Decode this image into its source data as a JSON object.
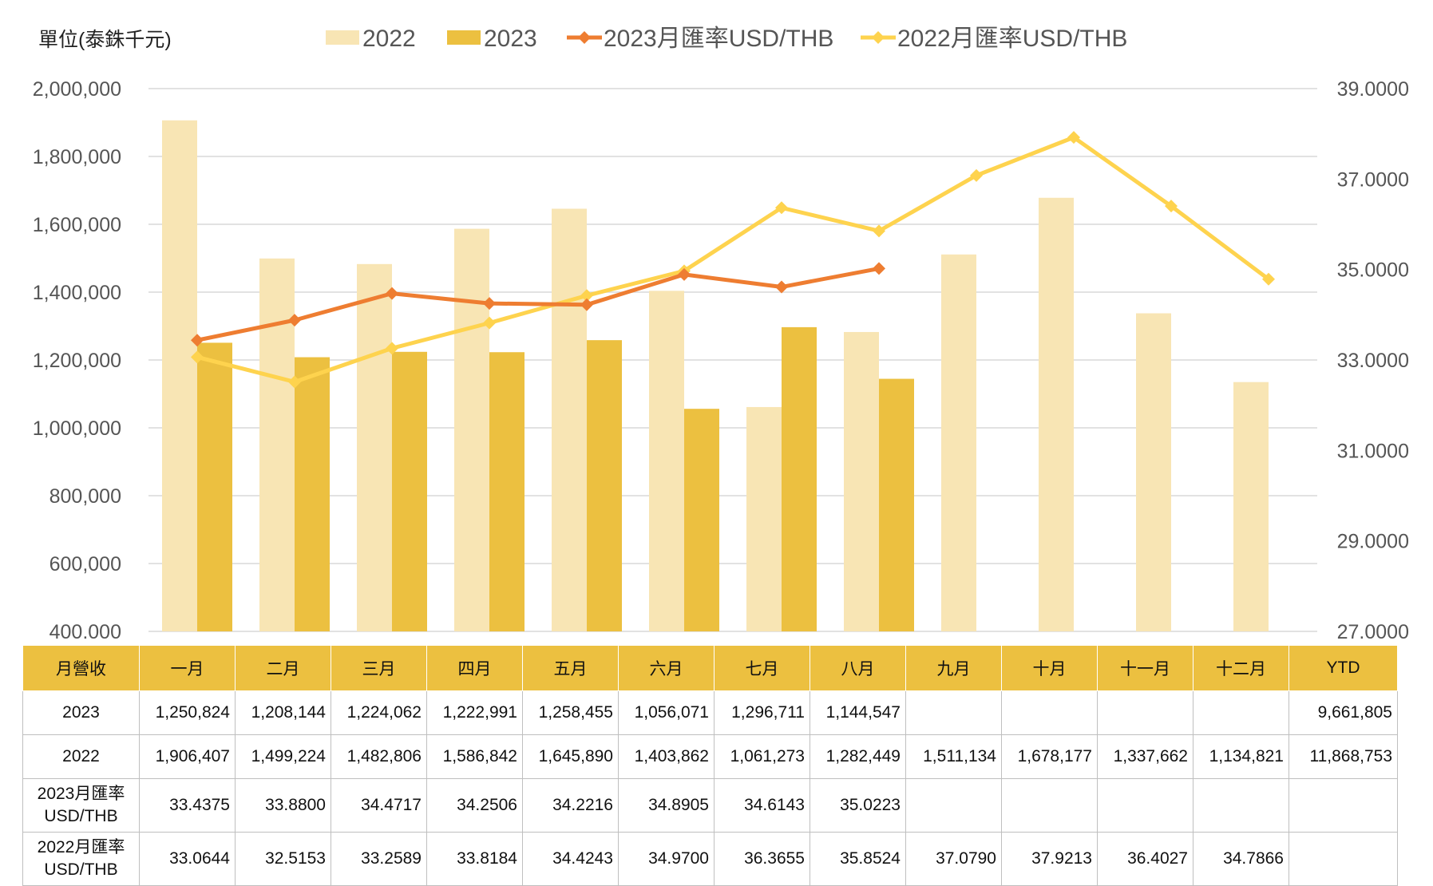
{
  "unit_label": "單位(泰銖千元)",
  "legend": [
    {
      "label": "2022",
      "kind": "bar",
      "color": "#f8e5b4"
    },
    {
      "label": "2023",
      "kind": "bar",
      "color": "#ecc040"
    },
    {
      "label": "2023月匯率USD/THB",
      "kind": "line",
      "color": "#ee7d31"
    },
    {
      "label": "2022月匯率USD/THB",
      "kind": "line",
      "color": "#fed34e"
    }
  ],
  "chart_data": {
    "type": "bar",
    "categories": [
      "一月",
      "二月",
      "三月",
      "四月",
      "五月",
      "六月",
      "七月",
      "八月",
      "九月",
      "十月",
      "十一月",
      "十二月"
    ],
    "series": [
      {
        "name": "2022",
        "axis": "left",
        "type": "bar",
        "color": "#f8e5b4",
        "values": [
          1906407,
          1499224,
          1482806,
          1586842,
          1645890,
          1403862,
          1061273,
          1282449,
          1511134,
          1678177,
          1337662,
          1134821
        ]
      },
      {
        "name": "2023",
        "axis": "left",
        "type": "bar",
        "color": "#ecc040",
        "values": [
          1250824,
          1208144,
          1224062,
          1222991,
          1258455,
          1056071,
          1296711,
          1144547,
          null,
          null,
          null,
          null
        ]
      },
      {
        "name": "2023月匯率USD/THB",
        "axis": "right",
        "type": "line",
        "color": "#ee7d31",
        "values": [
          33.4375,
          33.88,
          34.4717,
          34.2506,
          34.2216,
          34.8905,
          34.6143,
          35.0223,
          null,
          null,
          null,
          null
        ]
      },
      {
        "name": "2022月匯率USD/THB",
        "axis": "right",
        "type": "line",
        "color": "#fed34e",
        "values": [
          33.0644,
          32.5153,
          33.2589,
          33.8184,
          34.4243,
          34.97,
          36.3655,
          35.8524,
          37.079,
          37.9213,
          36.4027,
          34.7866
        ]
      }
    ],
    "ylim_left": [
      400000,
      2000000
    ],
    "yticks_left": [
      "400,000",
      "600,000",
      "800,000",
      "1,000,000",
      "1,200,000",
      "1,400,000",
      "1,600,000",
      "1,800,000",
      "2,000,000"
    ],
    "ylim_right": [
      27,
      39
    ],
    "yticks_right": [
      "27.0000",
      "29.0000",
      "31.0000",
      "33.0000",
      "35.0000",
      "37.0000",
      "39.0000"
    ],
    "grid": true,
    "legend_position": "top"
  },
  "table": {
    "header": [
      "月營收",
      "一月",
      "二月",
      "三月",
      "四月",
      "五月",
      "六月",
      "七月",
      "八月",
      "九月",
      "十月",
      "十一月",
      "十二月",
      "YTD"
    ],
    "rows": [
      {
        "label": "2023",
        "cells": [
          "1,250,824",
          "1,208,144",
          "1,224,062",
          "1,222,991",
          "1,258,455",
          "1,056,071",
          "1,296,711",
          "1,144,547",
          "",
          "",
          "",
          "",
          "9,661,805"
        ]
      },
      {
        "label": "2022",
        "cells": [
          "1,906,407",
          "1,499,224",
          "1,482,806",
          "1,586,842",
          "1,645,890",
          "1,403,862",
          "1,061,273",
          "1,282,449",
          "1,511,134",
          "1,678,177",
          "1,337,662",
          "1,134,821",
          "11,868,753"
        ]
      },
      {
        "label": "2023月匯率USD/THB",
        "cells": [
          "33.4375",
          "33.8800",
          "34.4717",
          "34.2506",
          "34.2216",
          "34.8905",
          "34.6143",
          "35.0223",
          "",
          "",
          "",
          "",
          ""
        ]
      },
      {
        "label": "2022月匯率USD/THB",
        "cells": [
          "33.0644",
          "32.5153",
          "33.2589",
          "33.8184",
          "34.4243",
          "34.9700",
          "36.3655",
          "35.8524",
          "37.0790",
          "37.9213",
          "36.4027",
          "34.7866",
          ""
        ]
      }
    ]
  }
}
